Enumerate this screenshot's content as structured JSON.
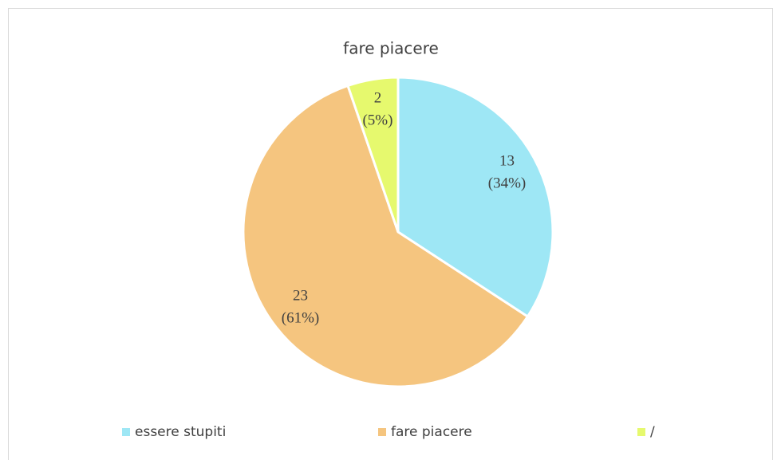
{
  "chart_data": {
    "type": "pie",
    "title": "fare piacere",
    "categories": [
      "essere stupiti",
      "fare piacere",
      "/"
    ],
    "values": [
      13,
      23,
      2
    ],
    "percents": [
      34,
      61,
      5
    ],
    "percent_labels": [
      "(34%)",
      "(61%)",
      "(5%)"
    ],
    "colors": [
      "#9ee7f5",
      "#f5c57f",
      "#e6f96e"
    ],
    "legend": "bottom"
  }
}
